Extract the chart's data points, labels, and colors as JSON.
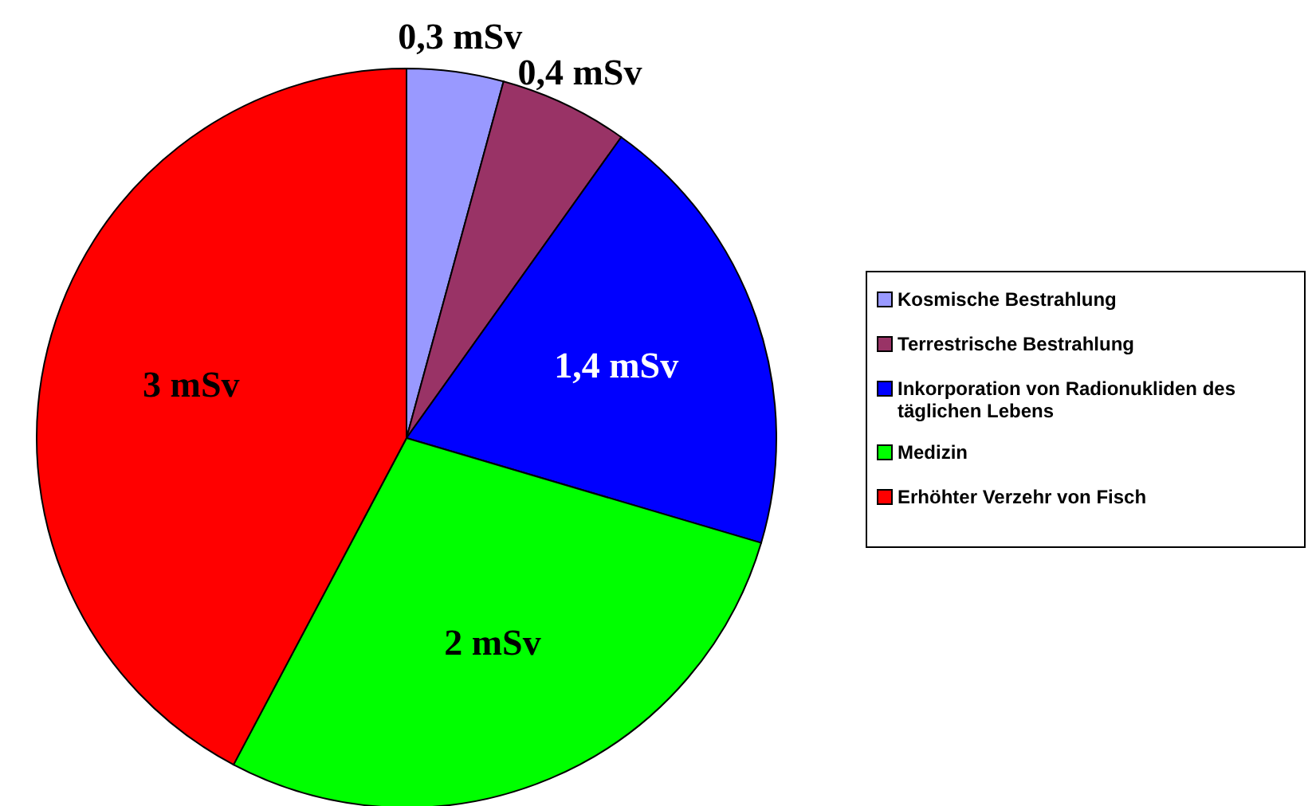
{
  "chart_data": {
    "type": "pie",
    "categories": [
      "Kosmische Bestrahlung",
      "Terrestrische Bestrahlung",
      "Inkorporation von Radionukliden des täglichen Lebens",
      "Medizin",
      "Erhöhter Verzehr von Fisch"
    ],
    "values": [
      0.3,
      0.4,
      1.4,
      2,
      3
    ],
    "value_labels": [
      "0,3 mSv",
      "0,4 mSv",
      "1,4 mSv",
      "2 mSv",
      "3 mSv"
    ],
    "colors": [
      "#9999ff",
      "#993366",
      "#0000ff",
      "#00ff00",
      "#ff0000"
    ],
    "legend": "right"
  }
}
